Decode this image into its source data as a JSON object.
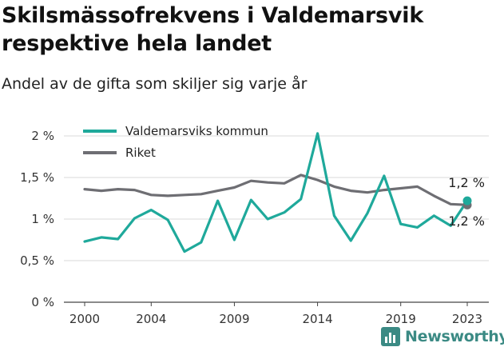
{
  "title": "Skilsmässofrekvens i Valdemarsvik respektive hela landet",
  "subtitle": "Andel av de gifta som skiljer sig varje år",
  "logo_text": "Newsworthy",
  "colors": {
    "kommun": "#1fa99b",
    "riket": "#6e6e73",
    "grid": "#d9d9d9"
  },
  "chart_data": {
    "type": "line",
    "x": [
      2000,
      2001,
      2002,
      2003,
      2004,
      2005,
      2006,
      2007,
      2008,
      2009,
      2010,
      2011,
      2012,
      2013,
      2014,
      2015,
      2016,
      2017,
      2018,
      2019,
      2020,
      2021,
      2022,
      2023
    ],
    "series": [
      {
        "name": "Valdemarsviks kommun",
        "color": "#1fa99b",
        "values": [
          0.73,
          0.78,
          0.76,
          1.01,
          1.11,
          0.99,
          0.61,
          0.72,
          1.22,
          0.75,
          1.23,
          1.0,
          1.08,
          1.24,
          2.03,
          1.04,
          0.74,
          1.07,
          1.52,
          0.94,
          0.9,
          1.04,
          0.92,
          1.22
        ]
      },
      {
        "name": "Riket",
        "color": "#6e6e73",
        "values": [
          1.36,
          1.34,
          1.36,
          1.35,
          1.29,
          1.28,
          1.29,
          1.3,
          1.34,
          1.38,
          1.46,
          1.44,
          1.43,
          1.53,
          1.47,
          1.39,
          1.34,
          1.32,
          1.35,
          1.37,
          1.39,
          1.28,
          1.18,
          1.17
        ]
      }
    ],
    "xticks": [
      2000,
      2004,
      2009,
      2014,
      2019,
      2023
    ],
    "yticks": [
      {
        "value": 0,
        "label": "0 %"
      },
      {
        "value": 0.5,
        "label": "0,5 %"
      },
      {
        "value": 1,
        "label": "1 %"
      },
      {
        "value": 1.5,
        "label": "1,5 %"
      },
      {
        "value": 2,
        "label": "2 %"
      }
    ],
    "ylim": [
      0,
      2
    ],
    "end_labels": [
      "1,2 %",
      "1,2 %"
    ],
    "legend_position": "top-left",
    "grid": true
  }
}
